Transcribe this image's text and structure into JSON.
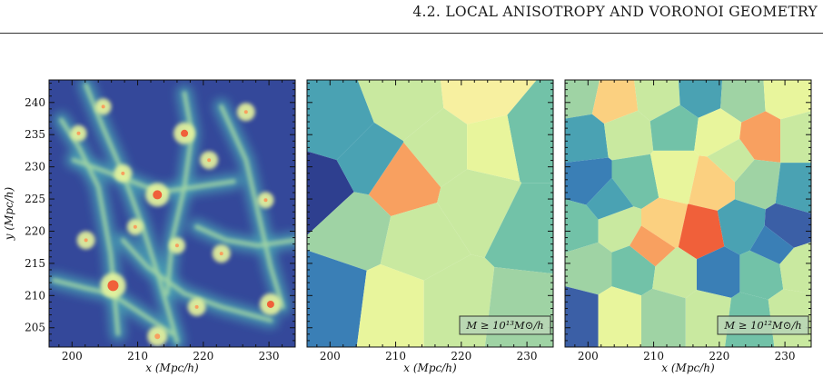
{
  "header": {
    "running_head": "4.2.  LOCAL ANISOTROPY AND VORONOI GEOMETRY"
  },
  "colors": {
    "void": "#2e3f8f",
    "low": "#3a7fb6",
    "mid": "#9fd3a4",
    "high": "#e8f59c",
    "peak": "#f0603a"
  },
  "chart_data": [
    {
      "type": "heatmap",
      "title": "",
      "xlabel": "x (Mpc/h)",
      "ylabel": "y (Mpc/h)",
      "xticks": [
        "200",
        "210",
        "220",
        "230"
      ],
      "yticks": [
        "205",
        "210",
        "215",
        "220",
        "225",
        "230",
        "235",
        "240"
      ],
      "xlim": [
        196.5,
        234
      ],
      "ylim": [
        202,
        243.5
      ],
      "annotation": "",
      "description_kind": "density-field"
    },
    {
      "type": "heatmap",
      "title": "",
      "xlabel": "x (Mpc/h)",
      "ylabel": "",
      "xticks": [
        "200",
        "210",
        "220",
        "230"
      ],
      "xlim": [
        196.5,
        234
      ],
      "ylim": [
        202,
        243.5
      ],
      "annotation": "M ≥ 10¹³M⊙/h",
      "description_kind": "voronoi"
    },
    {
      "type": "heatmap",
      "title": "",
      "xlabel": "x (Mpc/h)",
      "ylabel": "",
      "xticks": [
        "200",
        "210",
        "220",
        "230"
      ],
      "xlim": [
        196.5,
        234
      ],
      "ylim": [
        202,
        243.5
      ],
      "annotation": "M ≥ 10¹²M⊙/h",
      "description_kind": "voronoi"
    }
  ]
}
